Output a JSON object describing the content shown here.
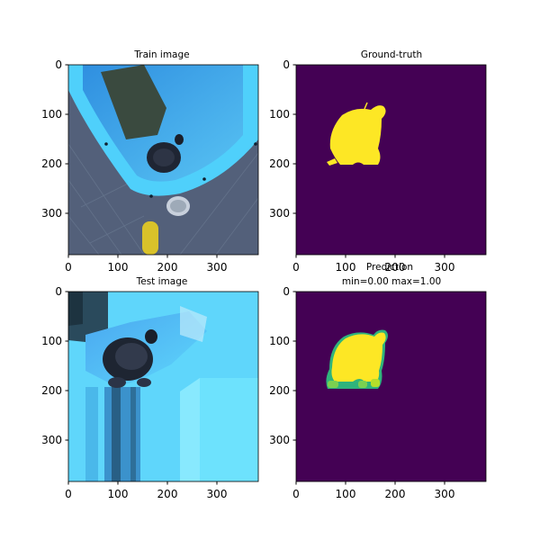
{
  "figure": {
    "panels": [
      {
        "id": "train",
        "title": "Train image",
        "kind": "photo",
        "x_ticks": [
          "0",
          "100",
          "200",
          "300"
        ],
        "y_ticks": [
          "0",
          "100",
          "200",
          "300"
        ]
      },
      {
        "id": "ground_truth",
        "title": "Ground-truth",
        "kind": "mask",
        "x_ticks": [
          "0",
          "100",
          "200",
          "300"
        ],
        "y_ticks": [
          "0",
          "100",
          "200",
          "300"
        ]
      },
      {
        "id": "test",
        "title": "Test image",
        "kind": "photo",
        "x_ticks": [
          "0",
          "100",
          "200",
          "300"
        ],
        "y_ticks": [
          "0",
          "100",
          "200",
          "300"
        ]
      },
      {
        "id": "prediction",
        "title_line1": "Prediction",
        "title_line2": "min=0.00 max=1.00",
        "kind": "mask",
        "x_ticks": [
          "0",
          "100",
          "200",
          "300"
        ],
        "y_ticks": [
          "0",
          "100",
          "200",
          "300"
        ]
      }
    ],
    "colors": {
      "mask_background": "#440154",
      "mask_foreground": "#fde725",
      "pool_blue": "#4cc6f4",
      "floor_gray": "#52617a",
      "axis": "#000000"
    }
  }
}
